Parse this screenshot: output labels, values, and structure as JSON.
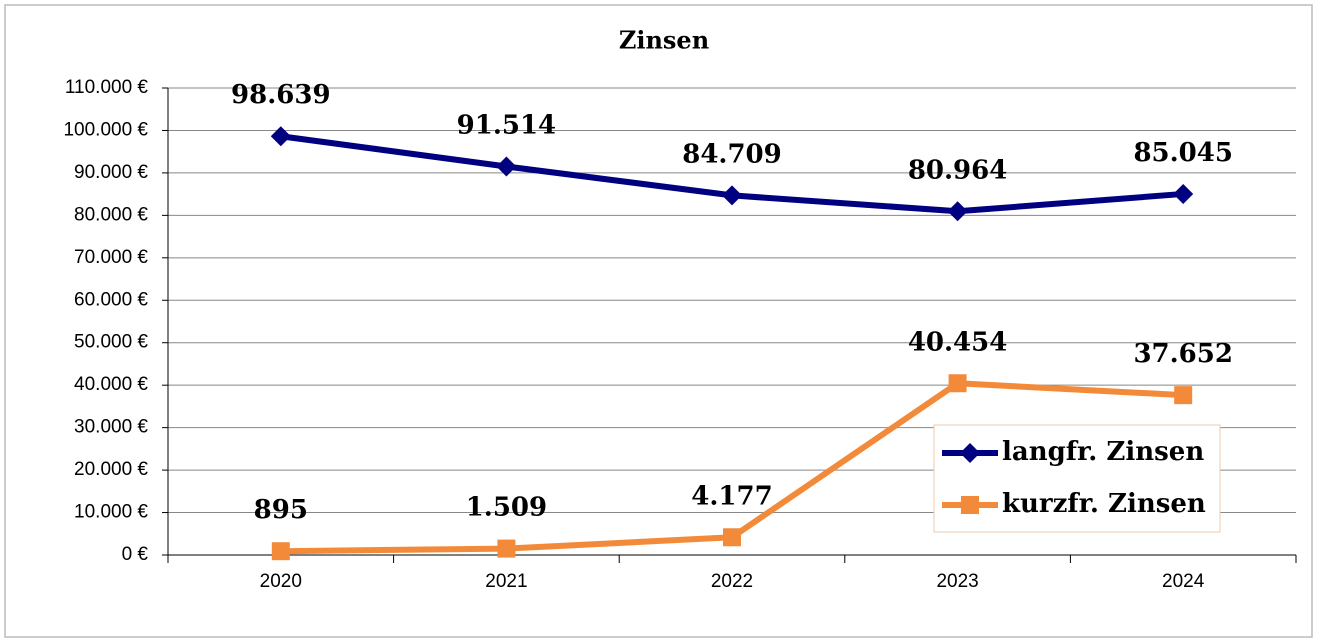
{
  "chart_data": {
    "type": "line",
    "title": "Zinsen",
    "categories": [
      "2020",
      "2021",
      "2022",
      "2023",
      "2024"
    ],
    "series": [
      {
        "name": "langfr. Zinsen",
        "color": "#000080",
        "marker": "diamond",
        "values": [
          98639,
          91514,
          84709,
          80964,
          85045
        ],
        "value_labels": [
          "98.639",
          "91.514",
          "84.709",
          "80.964",
          "85.045"
        ]
      },
      {
        "name": "kurzfr. Zinsen",
        "color": "#f28a3a",
        "marker": "square",
        "values": [
          895,
          1509,
          4177,
          40454,
          37652
        ],
        "value_labels": [
          "895",
          "1.509",
          "4.177",
          "40.454",
          "37.652"
        ]
      }
    ],
    "ylim": [
      0,
      110000
    ],
    "yticks": [
      {
        "value": 0,
        "label": "0 €"
      },
      {
        "value": 10000,
        "label": "10.000 €"
      },
      {
        "value": 20000,
        "label": "20.000 €"
      },
      {
        "value": 30000,
        "label": "30.000 €"
      },
      {
        "value": 40000,
        "label": "40.000 €"
      },
      {
        "value": 50000,
        "label": "50.000 €"
      },
      {
        "value": 60000,
        "label": "60.000 €"
      },
      {
        "value": 70000,
        "label": "70.000 €"
      },
      {
        "value": 80000,
        "label": "80.000 €"
      },
      {
        "value": 90000,
        "label": "90.000 €"
      },
      {
        "value": 100000,
        "label": "100.000 €"
      },
      {
        "value": 110000,
        "label": "110.000 €"
      }
    ],
    "grid": true,
    "legend": "lower right"
  }
}
